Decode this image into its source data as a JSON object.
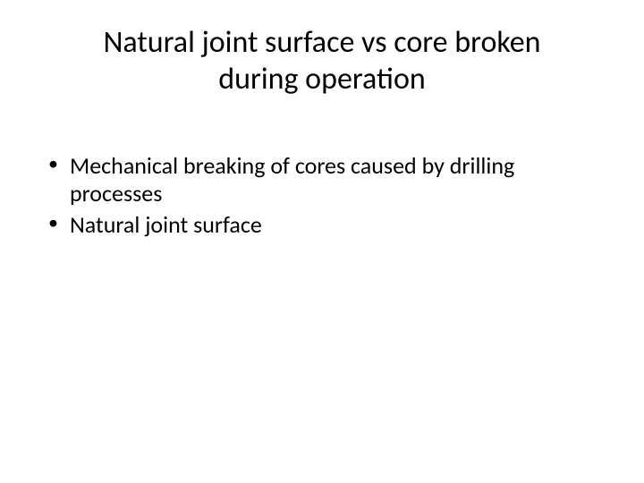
{
  "slide": {
    "title": "Natural joint surface vs core broken during operation",
    "bullets": [
      "Mechanical breaking of cores caused by drilling processes",
      "Natural joint surface"
    ],
    "background_color": "#ffffff",
    "text_color": "#000000",
    "title_fontsize": 34,
    "body_fontsize": 26
  }
}
